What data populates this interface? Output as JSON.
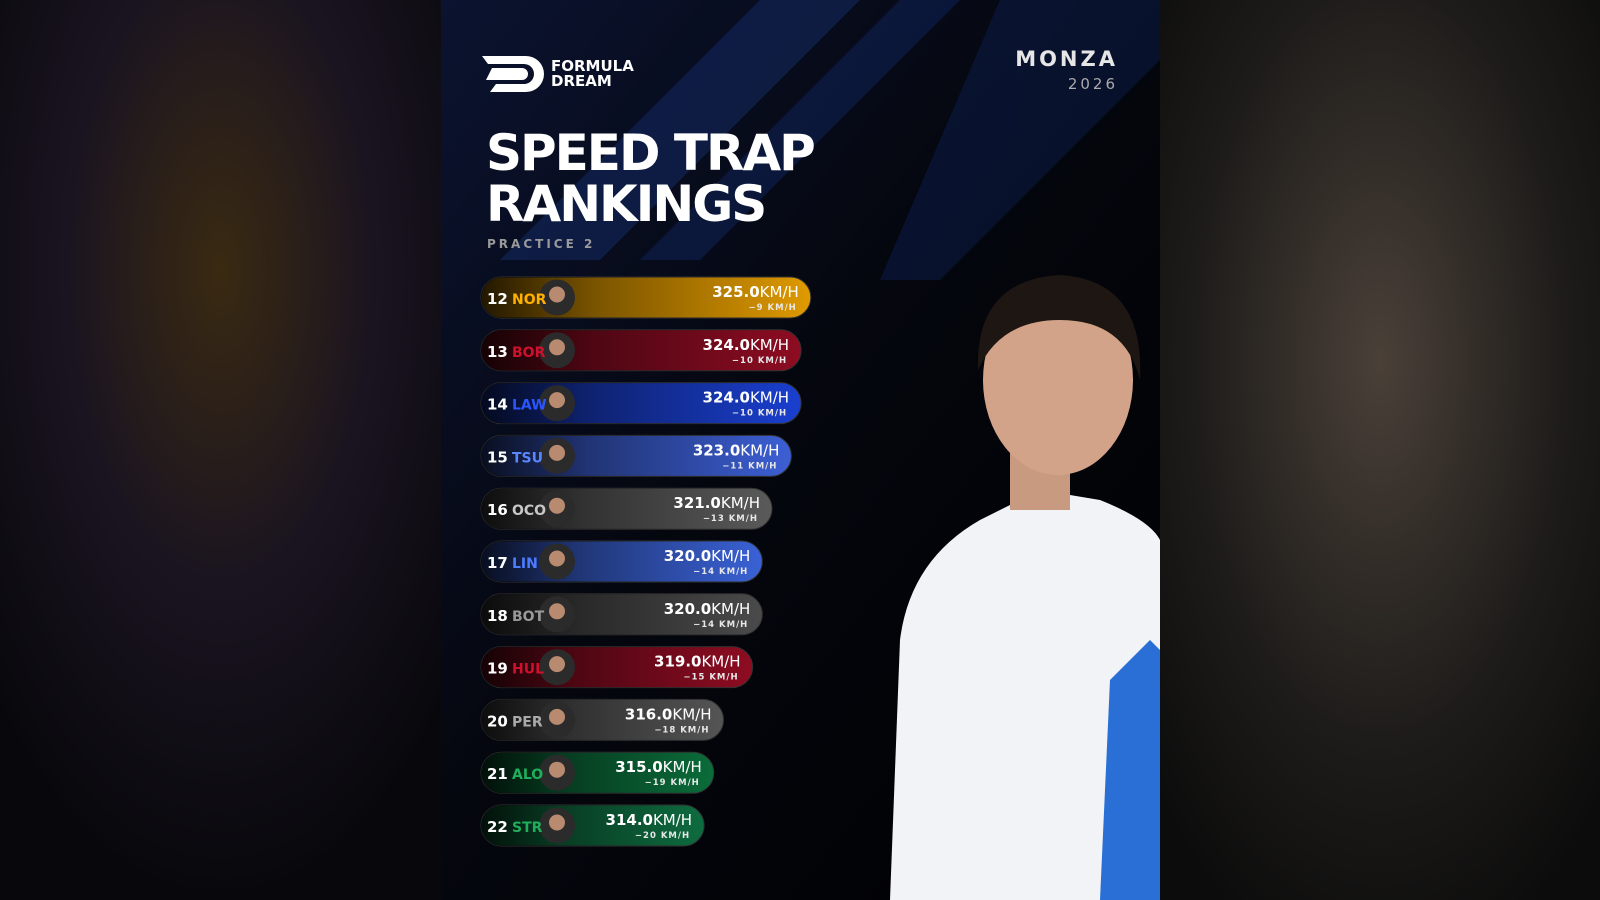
{
  "header": {
    "brand": [
      "FORMULA",
      "DREAM"
    ],
    "event": "MONZA",
    "year": "2026",
    "title": [
      "SPEED TRAP",
      "RANKINGS"
    ],
    "subtitle": "PRACTICE 2"
  },
  "unit": "KM/H",
  "rows": [
    {
      "rank": 12,
      "code": "NOR",
      "speed": 325,
      "speed_label": "325.0",
      "gap": "−9 KM/H",
      "color": "#e09a00",
      "code_color": "#ffb000"
    },
    {
      "rank": 13,
      "code": "BOR",
      "speed": 324,
      "speed_label": "324.0",
      "gap": "−10 KM/H",
      "color": "#8e0c22",
      "code_color": "#d0102c"
    },
    {
      "rank": 14,
      "code": "LAW",
      "speed": 324,
      "speed_label": "324.0",
      "gap": "−10 KM/H",
      "color": "#1a3fd0",
      "code_color": "#2a56ff"
    },
    {
      "rank": 15,
      "code": "TSU",
      "speed": 323,
      "speed_label": "323.0",
      "gap": "−11 KM/H",
      "color": "#3c5fd4",
      "code_color": "#5a86ff"
    },
    {
      "rank": 16,
      "code": "OCO",
      "speed": 321,
      "speed_label": "321.0",
      "gap": "−13 KM/H",
      "color": "#5a5a5a",
      "code_color": "#c8c8c8"
    },
    {
      "rank": 17,
      "code": "LIN",
      "speed": 320,
      "speed_label": "320.0",
      "gap": "−14 KM/H",
      "color": "#3a62d6",
      "code_color": "#4e7cff"
    },
    {
      "rank": 18,
      "code": "BOT",
      "speed": 320,
      "speed_label": "320.0",
      "gap": "−14 KM/H",
      "color": "#4a4a4a",
      "code_color": "#9a9a9a"
    },
    {
      "rank": 19,
      "code": "HUL",
      "speed": 319,
      "speed_label": "319.0",
      "gap": "−15 KM/H",
      "color": "#8e0c22",
      "code_color": "#d0102c"
    },
    {
      "rank": 20,
      "code": "PER",
      "speed": 316,
      "speed_label": "316.0",
      "gap": "−18 KM/H",
      "color": "#555555",
      "code_color": "#aaaaaa"
    },
    {
      "rank": 21,
      "code": "ALO",
      "speed": 315,
      "speed_label": "315.0",
      "gap": "−19 KM/H",
      "color": "#0b6c3a",
      "code_color": "#1fae5c"
    },
    {
      "rank": 22,
      "code": "STR",
      "speed": 314,
      "speed_label": "314.0",
      "gap": "−20 KM/H",
      "color": "#0e6c3f",
      "code_color": "#1fae5c"
    }
  ]
}
